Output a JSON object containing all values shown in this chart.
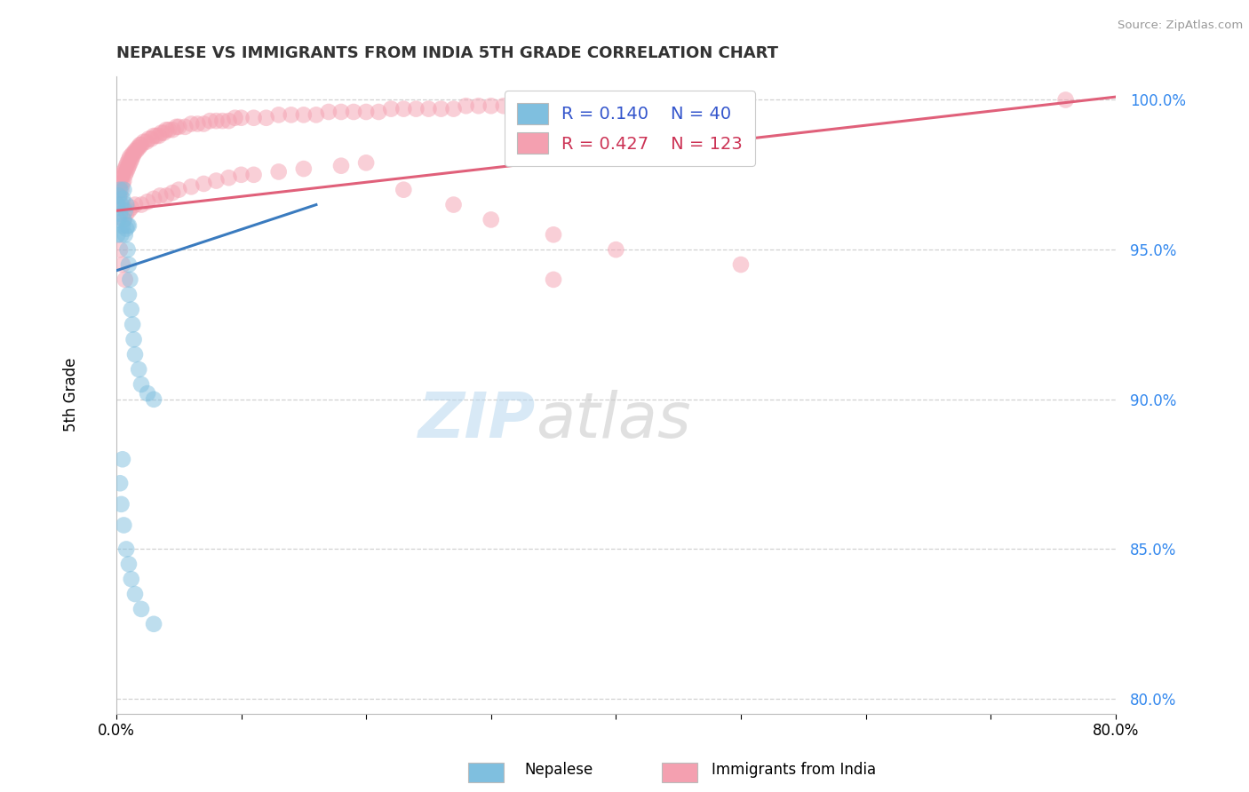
{
  "title": "NEPALESE VS IMMIGRANTS FROM INDIA 5TH GRADE CORRELATION CHART",
  "source_text": "Source: ZipAtlas.com",
  "ylabel": "5th Grade",
  "xlim": [
    0.0,
    0.8
  ],
  "ylim": [
    0.795,
    1.008
  ],
  "yticks": [
    0.8,
    0.85,
    0.9,
    0.95,
    1.0
  ],
  "ytick_labels": [
    "80.0%",
    "85.0%",
    "90.0%",
    "95.0%",
    "100.0%"
  ],
  "xticks": [
    0.0,
    0.1,
    0.2,
    0.3,
    0.4,
    0.5,
    0.6,
    0.7,
    0.8
  ],
  "xtick_labels": [
    "0.0%",
    "",
    "",
    "",
    "",
    "",
    "",
    "",
    "80.0%"
  ],
  "nepalese_R": 0.14,
  "nepalese_N": 40,
  "india_R": 0.427,
  "india_N": 123,
  "nepalese_color": "#7fbfdf",
  "india_color": "#f4a0b0",
  "nepalese_line_color": "#3a7bbf",
  "india_line_color": "#e0607a",
  "legend_label_nepalese": "Nepalese",
  "legend_label_india": "Immigrants from India",
  "watermark_zip": "ZIP",
  "watermark_atlas": "atlas",
  "background_color": "#ffffff",
  "grid_color": "#cccccc",
  "nepalese_x": [
    0.001,
    0.001,
    0.002,
    0.002,
    0.003,
    0.003,
    0.004,
    0.004,
    0.005,
    0.005,
    0.006,
    0.006,
    0.007,
    0.007,
    0.008,
    0.008,
    0.009,
    0.009,
    0.01,
    0.01,
    0.01,
    0.011,
    0.012,
    0.013,
    0.014,
    0.015,
    0.018,
    0.02,
    0.025,
    0.03,
    0.005,
    0.003,
    0.004,
    0.006,
    0.008,
    0.01,
    0.012,
    0.015,
    0.02,
    0.03
  ],
  "nepalese_y": [
    0.955,
    0.965,
    0.96,
    0.968,
    0.962,
    0.97,
    0.955,
    0.965,
    0.958,
    0.967,
    0.96,
    0.97,
    0.955,
    0.963,
    0.957,
    0.965,
    0.95,
    0.958,
    0.945,
    0.958,
    0.935,
    0.94,
    0.93,
    0.925,
    0.92,
    0.915,
    0.91,
    0.905,
    0.902,
    0.9,
    0.88,
    0.872,
    0.865,
    0.858,
    0.85,
    0.845,
    0.84,
    0.835,
    0.83,
    0.825
  ],
  "india_x": [
    0.001,
    0.002,
    0.002,
    0.003,
    0.003,
    0.004,
    0.004,
    0.005,
    0.005,
    0.006,
    0.006,
    0.007,
    0.007,
    0.008,
    0.008,
    0.009,
    0.009,
    0.01,
    0.01,
    0.011,
    0.011,
    0.012,
    0.013,
    0.013,
    0.014,
    0.015,
    0.016,
    0.017,
    0.018,
    0.019,
    0.02,
    0.022,
    0.024,
    0.026,
    0.028,
    0.03,
    0.032,
    0.034,
    0.036,
    0.038,
    0.04,
    0.042,
    0.045,
    0.048,
    0.05,
    0.055,
    0.06,
    0.065,
    0.07,
    0.075,
    0.08,
    0.085,
    0.09,
    0.095,
    0.1,
    0.11,
    0.12,
    0.13,
    0.14,
    0.15,
    0.16,
    0.17,
    0.18,
    0.19,
    0.2,
    0.21,
    0.22,
    0.23,
    0.24,
    0.25,
    0.26,
    0.27,
    0.28,
    0.29,
    0.3,
    0.31,
    0.32,
    0.33,
    0.34,
    0.35,
    0.36,
    0.37,
    0.38,
    0.39,
    0.4,
    0.42,
    0.44,
    0.46,
    0.48,
    0.5,
    0.006,
    0.008,
    0.01,
    0.012,
    0.015,
    0.02,
    0.025,
    0.03,
    0.035,
    0.04,
    0.045,
    0.05,
    0.06,
    0.07,
    0.08,
    0.09,
    0.1,
    0.11,
    0.13,
    0.15,
    0.18,
    0.2,
    0.23,
    0.27,
    0.3,
    0.35,
    0.4,
    0.5,
    0.35,
    0.76,
    0.003,
    0.005,
    0.007
  ],
  "india_y": [
    0.965,
    0.967,
    0.97,
    0.968,
    0.972,
    0.97,
    0.974,
    0.972,
    0.975,
    0.973,
    0.976,
    0.975,
    0.977,
    0.976,
    0.978,
    0.977,
    0.979,
    0.978,
    0.98,
    0.979,
    0.981,
    0.98,
    0.981,
    0.982,
    0.982,
    0.983,
    0.983,
    0.984,
    0.984,
    0.985,
    0.985,
    0.986,
    0.986,
    0.987,
    0.987,
    0.988,
    0.988,
    0.988,
    0.989,
    0.989,
    0.99,
    0.99,
    0.99,
    0.991,
    0.991,
    0.991,
    0.992,
    0.992,
    0.992,
    0.993,
    0.993,
    0.993,
    0.993,
    0.994,
    0.994,
    0.994,
    0.994,
    0.995,
    0.995,
    0.995,
    0.995,
    0.996,
    0.996,
    0.996,
    0.996,
    0.996,
    0.997,
    0.997,
    0.997,
    0.997,
    0.997,
    0.997,
    0.998,
    0.998,
    0.998,
    0.998,
    0.998,
    0.998,
    0.998,
    0.999,
    0.999,
    0.999,
    0.999,
    0.999,
    0.999,
    0.999,
    0.999,
    0.999,
    0.999,
    1.0,
    0.96,
    0.962,
    0.963,
    0.964,
    0.965,
    0.965,
    0.966,
    0.967,
    0.968,
    0.968,
    0.969,
    0.97,
    0.971,
    0.972,
    0.973,
    0.974,
    0.975,
    0.975,
    0.976,
    0.977,
    0.978,
    0.979,
    0.97,
    0.965,
    0.96,
    0.955,
    0.95,
    0.945,
    0.94,
    1.0,
    0.95,
    0.945,
    0.94
  ],
  "nep_trend_x": [
    0.0,
    0.16
  ],
  "nep_trend_y": [
    0.943,
    0.965
  ],
  "ind_trend_x": [
    0.0,
    0.8
  ],
  "ind_trend_y": [
    0.963,
    1.001
  ]
}
